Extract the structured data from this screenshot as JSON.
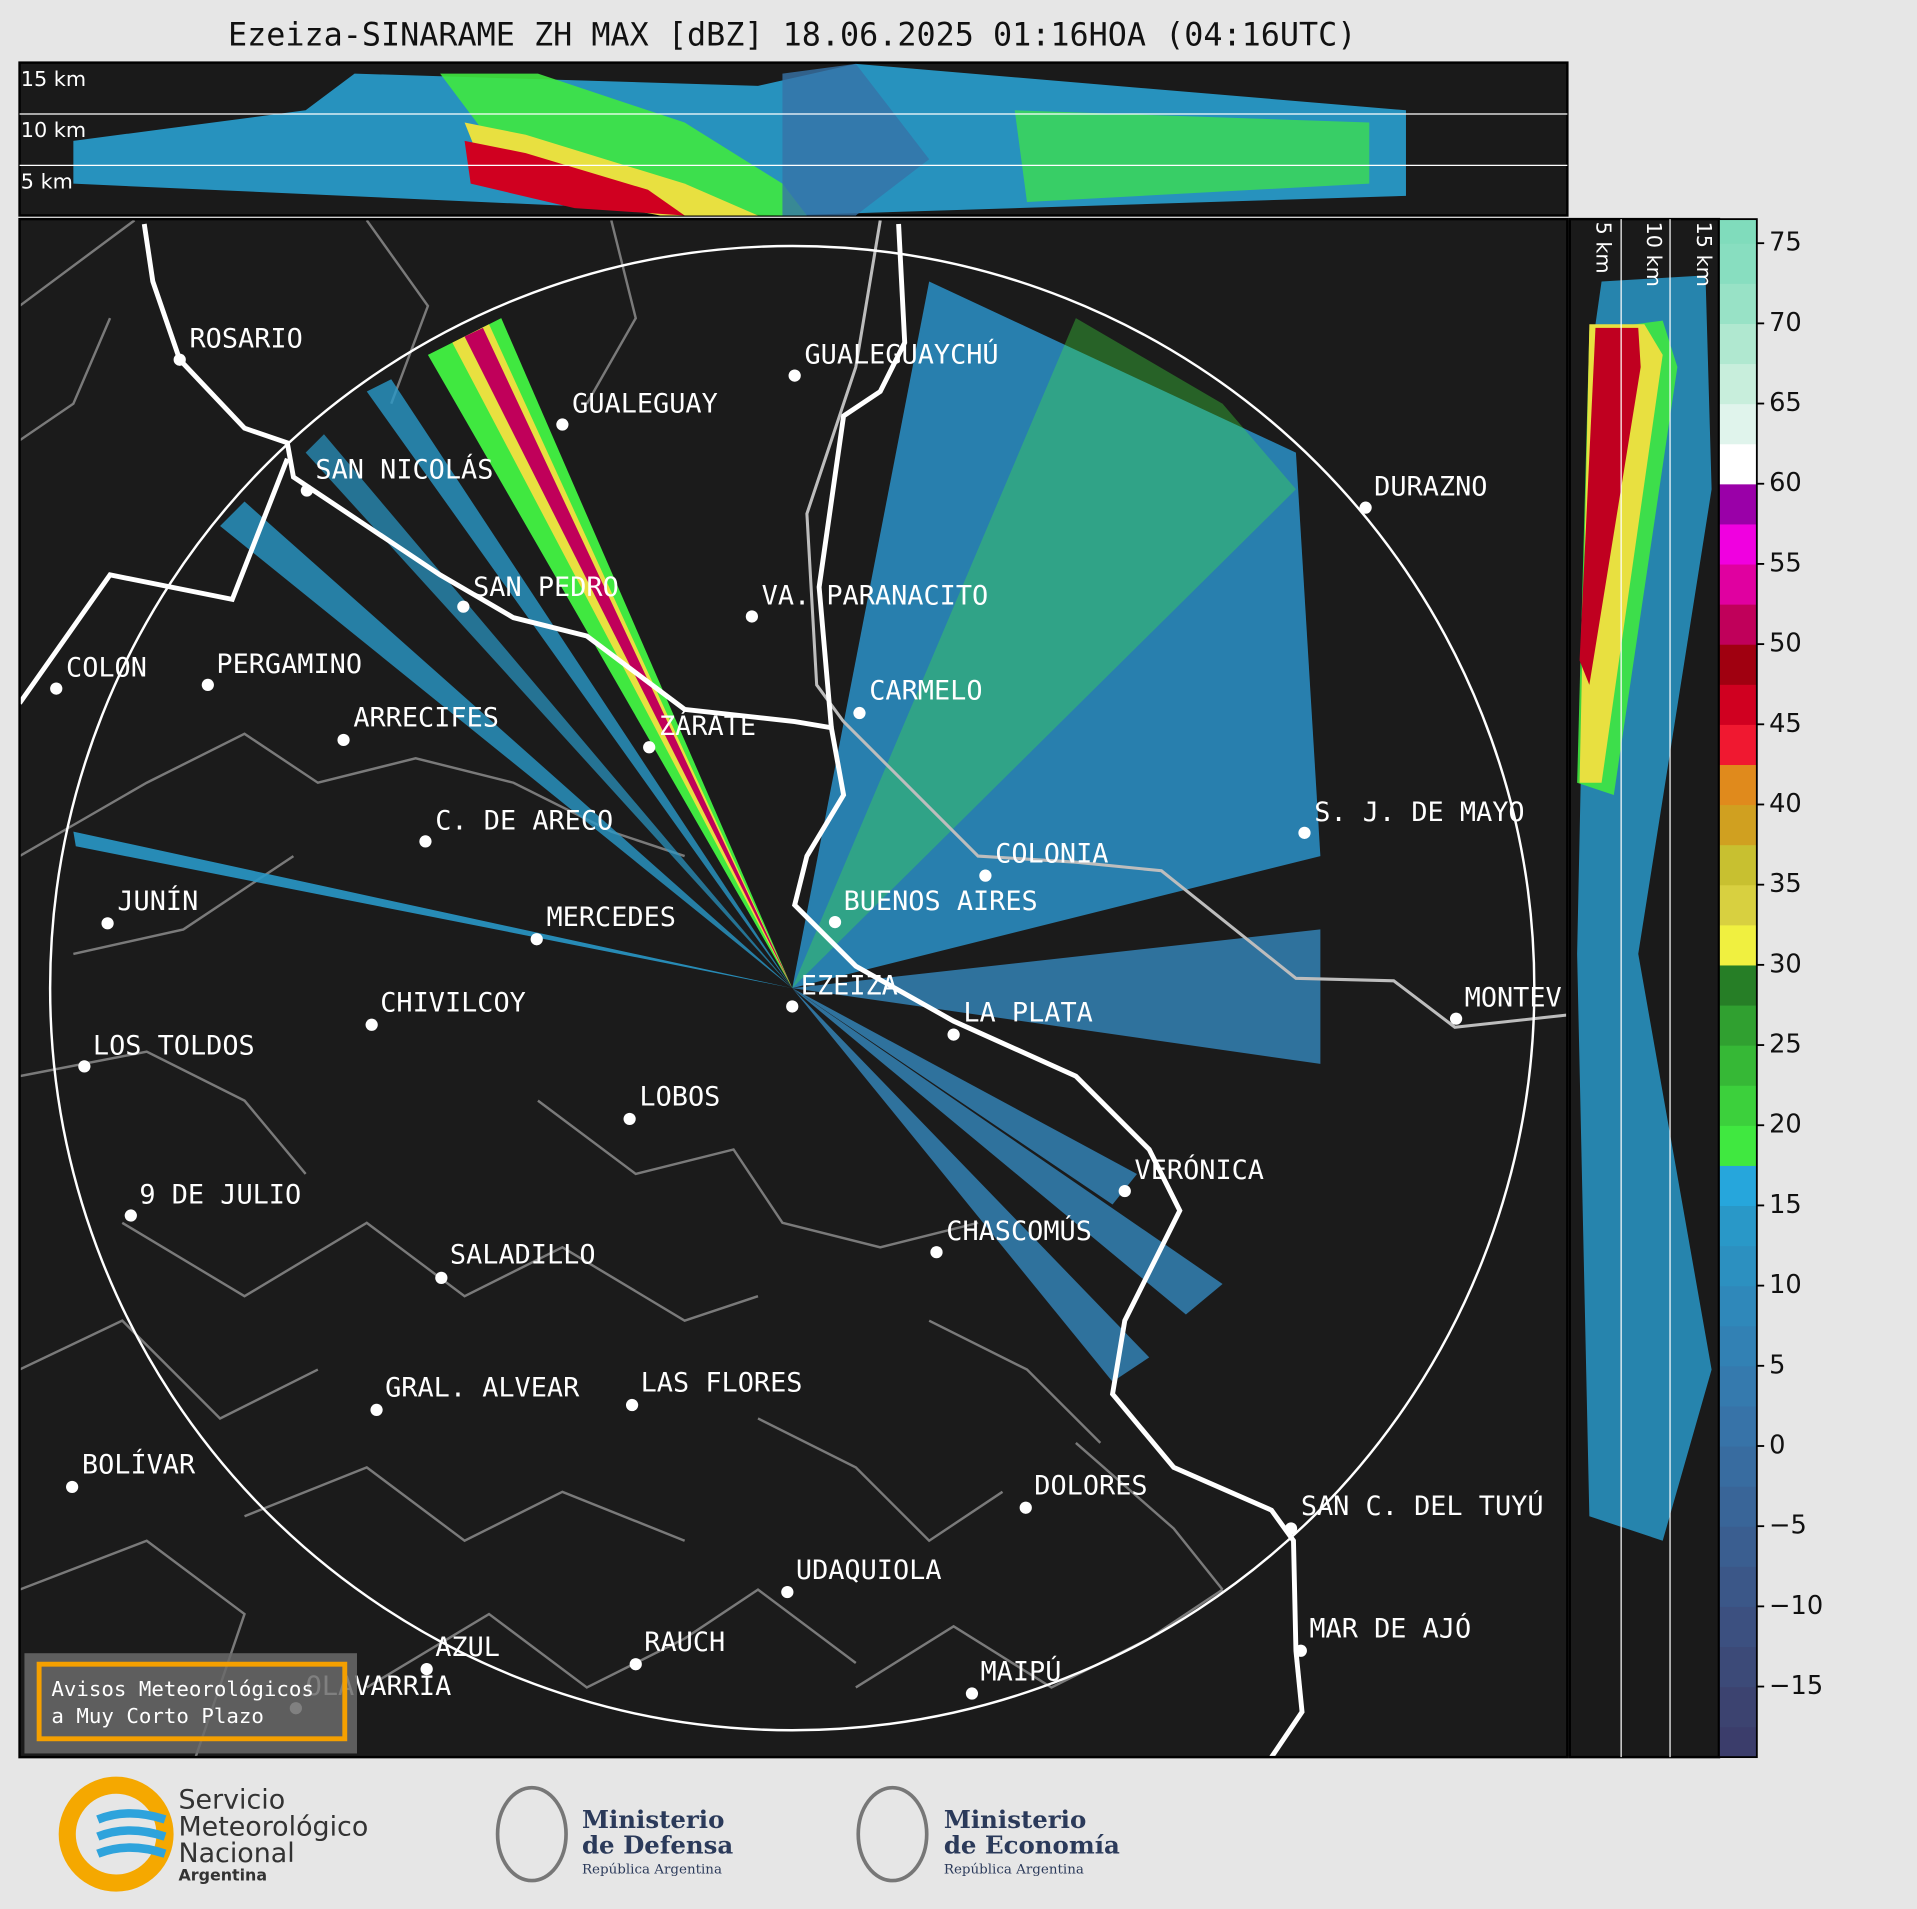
{
  "title": "Ezeiza-SINARAME ZH MAX [dBZ] 18.06.2025 01:16HOA (04:16UTC)",
  "top_panel": {
    "labels": [
      "15 km",
      "10 km",
      "5 km"
    ]
  },
  "side_panel": {
    "labels": [
      "5 km",
      "10 km",
      "15 km"
    ]
  },
  "cities": [
    "ROSARIO",
    "GUALEGUAYCHÚ",
    "GUALEGUAY",
    "SAN NICOLÁS",
    "DURAZNO",
    "SAN PEDRO",
    "VA. PARANACITO",
    "COLON",
    "PERGAMINO",
    "CARMELO",
    "ARRECIFES",
    "ZÁRATE",
    "C. DE ARECO",
    "S. J. DE MAYO",
    "COLONIA",
    "BUENOS AIRES",
    "JUNÍN",
    "MERCEDES",
    "MONTEV",
    "EZEIZA",
    "CHIVILCOY",
    "LA PLATA",
    "LOS TOLDOS",
    "LOBOS",
    "VERÓNICA",
    "9 DE JULIO",
    "CHASCOMÚS",
    "SALADILLO",
    "GRAL. ALVEAR",
    "LAS FLORES",
    "BOLÍVAR",
    "DOLORES",
    "SAN C. DEL TUYÚ",
    "UDAQUIOLA",
    "MAR DE AJÓ",
    "RAUCH",
    "AZUL",
    "OLAVARRÍA",
    "MAIPÚ"
  ],
  "colorbar": {
    "ylim": [
      -19.4,
      76.5
    ],
    "bounds": [
      -19.4,
      -17.5,
      -15,
      -12.5,
      -10,
      -7.5,
      -5,
      -2.5,
      0,
      2.5,
      5,
      7.5,
      10,
      12.5,
      15,
      17.5,
      20,
      22.5,
      25,
      27.5,
      30,
      32.5,
      35,
      37.5,
      40,
      42.5,
      45,
      47.5,
      50,
      52.5,
      55,
      57.5,
      60,
      62.5,
      65,
      67.5,
      70,
      72.5,
      75,
      76.5
    ],
    "colors": [
      "#3b3d6b",
      "#3c4370",
      "#3c4a78",
      "#3c5080",
      "#3b5788",
      "#3a5e90",
      "#396598",
      "#386ca0",
      "#3773a8",
      "#357aae",
      "#3281b4",
      "#2f88ba",
      "#2c90c0",
      "#2998c8",
      "#26a6dc",
      "#40e840",
      "#3cd03c",
      "#36b836",
      "#30a030",
      "#267e26",
      "#f0f040",
      "#d8d040",
      "#c8c030",
      "#d0a020",
      "#e08a1c",
      "#f01830",
      "#d00020",
      "#a00010",
      "#c0005a",
      "#e000a0",
      "#f000e0",
      "#9a00a8",
      "#ffffff",
      "#e0f4ec",
      "#c8eedc",
      "#b0e8d0",
      "#98e2c6",
      "#88dec0",
      "#80dcbc"
    ],
    "yticks": [
      75,
      70,
      65,
      60,
      55,
      50,
      45,
      40,
      35,
      30,
      25,
      20,
      15,
      10,
      5,
      0,
      {
        "value": -5,
        "label": "−5"
      },
      {
        "value": -10,
        "label": "−10"
      },
      {
        "value": -15,
        "label": "−15"
      }
    ]
  },
  "notice": {
    "lines": [
      "Avisos Meteorológicos",
      "a Muy Corto Plazo"
    ]
  },
  "footer": {
    "smn": [
      "Servicio",
      "Meteorológico",
      "Nacional",
      "Argentina"
    ],
    "defensa": [
      "Ministerio",
      "de Defensa",
      "República Argentina"
    ],
    "economia": [
      "Ministerio",
      "de Economía",
      "República Argentina"
    ]
  }
}
